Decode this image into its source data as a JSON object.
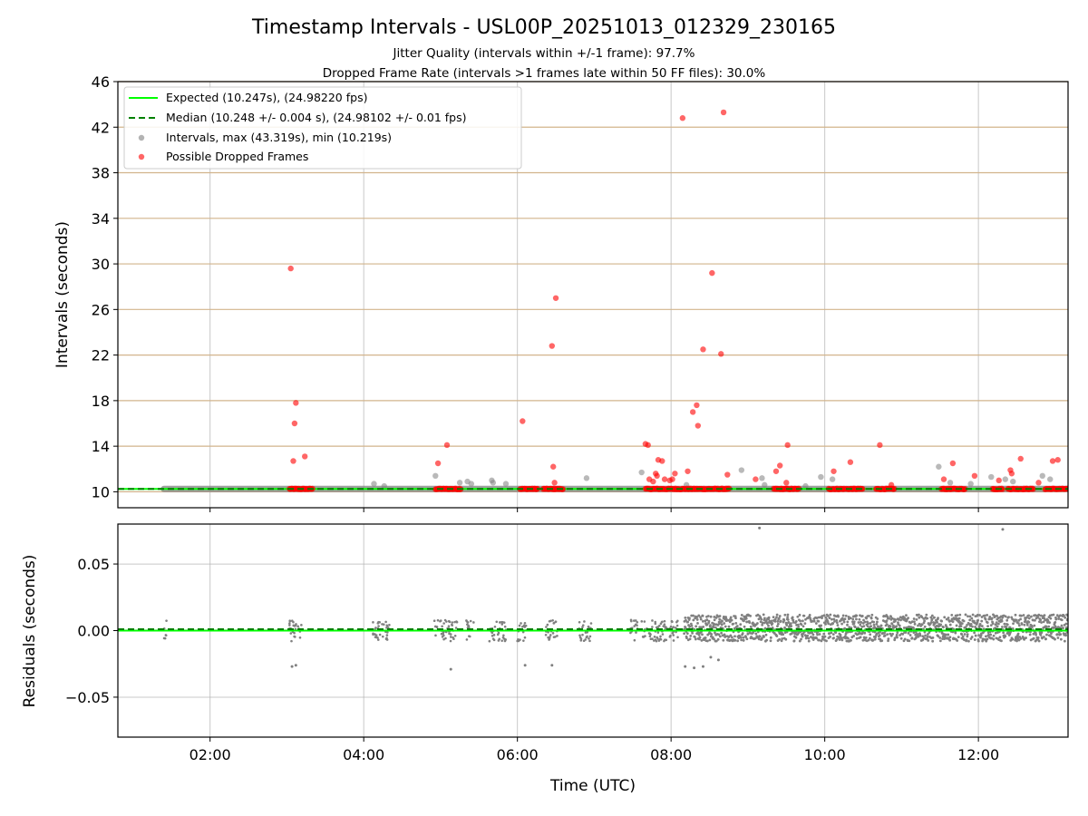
{
  "chart_data": [
    {
      "type": "scatter",
      "title": "Timestamp Intervals - USL00P_20251013_012329_230165",
      "subtitle_lines": [
        "Jitter Quality (intervals within +/-1 frame): 97.7%",
        "Dropped Frame Rate (intervals >1 frames late within 50 FF files): 30.0%"
      ],
      "xlabel": "",
      "ylabel": "Intervals (seconds)",
      "xlim": [
        "00:48",
        "13:10"
      ],
      "ylim": [
        8.6,
        46
      ],
      "yticks": [
        10,
        14,
        18,
        22,
        26,
        30,
        34,
        38,
        42,
        46
      ],
      "ytick_labels": [
        "10",
        "14",
        "18",
        "22",
        "26",
        "30",
        "34",
        "38",
        "42",
        "46"
      ],
      "xticks": [
        "02:00",
        "04:00",
        "06:00",
        "08:00",
        "10:00",
        "12:00"
      ],
      "grid": "vertical gridlines at x ticks; tan horizontal lines at y ticks",
      "legend_position": "upper-left",
      "legend": [
        "Expected (10.247s), (24.98220 fps)",
        "Median (10.248 +/- 0.004 s), (24.98102 +/- 0.01 fps)",
        "Intervals, max (43.319s), min (10.219s)",
        "Possible Dropped Frames"
      ],
      "expected_interval": 10.247,
      "median_interval": 10.248,
      "series": [
        {
          "name": "Possible Dropped Frames",
          "color": "#ff0000",
          "points": [
            {
              "x": "03:03",
              "y": 29.6
            },
            {
              "x": "03:05",
              "y": 12.7
            },
            {
              "x": "03:06",
              "y": 16.0
            },
            {
              "x": "03:07",
              "y": 17.8
            },
            {
              "x": "03:14",
              "y": 13.1
            },
            {
              "x": "04:58",
              "y": 12.5
            },
            {
              "x": "05:05",
              "y": 14.1
            },
            {
              "x": "06:04",
              "y": 16.2
            },
            {
              "x": "06:27",
              "y": 22.8
            },
            {
              "x": "06:28",
              "y": 12.2
            },
            {
              "x": "06:29",
              "y": 10.8
            },
            {
              "x": "06:30",
              "y": 27.0
            },
            {
              "x": "07:40",
              "y": 14.2
            },
            {
              "x": "07:42",
              "y": 14.1
            },
            {
              "x": "07:43",
              "y": 11.1
            },
            {
              "x": "07:46",
              "y": 10.9
            },
            {
              "x": "07:48",
              "y": 11.6
            },
            {
              "x": "07:49",
              "y": 11.4
            },
            {
              "x": "07:50",
              "y": 12.8
            },
            {
              "x": "07:53",
              "y": 12.7
            },
            {
              "x": "07:55",
              "y": 11.1
            },
            {
              "x": "07:59",
              "y": 11.0
            },
            {
              "x": "08:01",
              "y": 11.1
            },
            {
              "x": "08:03",
              "y": 11.6
            },
            {
              "x": "08:09",
              "y": 42.8
            },
            {
              "x": "08:13",
              "y": 11.8
            },
            {
              "x": "08:17",
              "y": 17.0
            },
            {
              "x": "08:20",
              "y": 17.6
            },
            {
              "x": "08:21",
              "y": 15.8
            },
            {
              "x": "08:25",
              "y": 22.5
            },
            {
              "x": "08:32",
              "y": 29.2
            },
            {
              "x": "08:39",
              "y": 22.1
            },
            {
              "x": "08:41",
              "y": 43.3
            },
            {
              "x": "08:44",
              "y": 11.5
            },
            {
              "x": "09:06",
              "y": 11.1
            },
            {
              "x": "09:22",
              "y": 11.8
            },
            {
              "x": "09:25",
              "y": 12.3
            },
            {
              "x": "09:30",
              "y": 10.8
            },
            {
              "x": "09:31",
              "y": 14.1
            },
            {
              "x": "10:07",
              "y": 11.8
            },
            {
              "x": "10:20",
              "y": 12.6
            },
            {
              "x": "10:43",
              "y": 14.1
            },
            {
              "x": "10:52",
              "y": 10.6
            },
            {
              "x": "11:33",
              "y": 11.1
            },
            {
              "x": "11:40",
              "y": 12.5
            },
            {
              "x": "11:57",
              "y": 11.4
            },
            {
              "x": "12:16",
              "y": 11.0
            },
            {
              "x": "12:25",
              "y": 11.9
            },
            {
              "x": "12:26",
              "y": 11.6
            },
            {
              "x": "12:33",
              "y": 12.9
            },
            {
              "x": "12:47",
              "y": 10.8
            },
            {
              "x": "12:58",
              "y": 12.7
            },
            {
              "x": "13:02",
              "y": 12.8
            }
          ],
          "clusters_near_10_25": [
            [
              "03:02",
              "03:20"
            ],
            [
              "04:56",
              "05:16"
            ],
            [
              "06:02",
              "06:16"
            ],
            [
              "06:20",
              "06:36"
            ],
            [
              "07:40",
              "08:46"
            ],
            [
              "09:20",
              "09:40"
            ],
            [
              "10:03",
              "10:16"
            ],
            [
              "10:17",
              "10:30"
            ],
            [
              "10:40",
              "10:55"
            ],
            [
              "11:31",
              "11:50"
            ],
            [
              "12:11",
              "12:19"
            ],
            [
              "12:23",
              "12:43"
            ],
            [
              "12:52",
              "13:10"
            ]
          ]
        },
        {
          "name": "Intervals, max (43.319s), min (10.219s)",
          "color": "#808080",
          "points": [
            {
              "x": "04:08",
              "y": 10.7
            },
            {
              "x": "04:16",
              "y": 10.5
            },
            {
              "x": "04:56",
              "y": 11.4
            },
            {
              "x": "05:15",
              "y": 10.8
            },
            {
              "x": "05:21",
              "y": 10.9
            },
            {
              "x": "05:24",
              "y": 10.7
            },
            {
              "x": "05:40",
              "y": 11.0
            },
            {
              "x": "05:41",
              "y": 10.8
            },
            {
              "x": "05:51",
              "y": 10.7
            },
            {
              "x": "06:54",
              "y": 11.2
            },
            {
              "x": "07:37",
              "y": 11.7
            },
            {
              "x": "08:12",
              "y": 10.6
            },
            {
              "x": "08:55",
              "y": 11.9
            },
            {
              "x": "09:11",
              "y": 11.2
            },
            {
              "x": "09:13",
              "y": 10.6
            },
            {
              "x": "09:45",
              "y": 10.5
            },
            {
              "x": "09:57",
              "y": 11.3
            },
            {
              "x": "10:06",
              "y": 11.1
            },
            {
              "x": "11:29",
              "y": 12.2
            },
            {
              "x": "11:38",
              "y": 10.8
            },
            {
              "x": "11:54",
              "y": 10.7
            },
            {
              "x": "12:10",
              "y": 11.3
            },
            {
              "x": "12:21",
              "y": 11.1
            },
            {
              "x": "12:27",
              "y": 10.9
            },
            {
              "x": "12:50",
              "y": 11.4
            },
            {
              "x": "12:56",
              "y": 11.1
            }
          ],
          "baseline": {
            "from": "01:24",
            "to": "13:10",
            "y": 10.25
          }
        }
      ]
    },
    {
      "type": "scatter",
      "xlabel": "Time (UTC)",
      "ylabel": "Residuals (seconds)",
      "xlim": [
        "00:48",
        "13:10"
      ],
      "ylim": [
        -0.08,
        0.08
      ],
      "yticks": [
        0.05,
        0.0,
        -0.05
      ],
      "ytick_labels": [
        "0.05",
        "0.00",
        "−0.05"
      ],
      "xticks": [
        "02:00",
        "04:00",
        "06:00",
        "08:00",
        "10:00",
        "12:00"
      ],
      "xtick_labels": [
        "02:00",
        "04:00",
        "06:00",
        "08:00",
        "10:00",
        "12:00"
      ],
      "grid": "on",
      "series": [
        {
          "name": "Residuals",
          "color": "#808080",
          "sparse_bursts": [
            [
              "01:24",
              "01:26"
            ],
            [
              "03:02",
              "03:12"
            ],
            [
              "04:07",
              "04:20"
            ],
            [
              "04:55",
              "05:13"
            ],
            [
              "05:20",
              "05:26"
            ],
            [
              "05:38",
              "05:52"
            ],
            [
              "06:00",
              "06:08"
            ],
            [
              "06:22",
              "06:32"
            ],
            [
              "06:48",
              "06:58"
            ],
            [
              "07:27",
              "07:34"
            ],
            [
              "07:37",
              "08:06"
            ]
          ],
          "dense_band": {
            "from": "08:10",
            "to": "13:10",
            "min": -0.008,
            "max": 0.012
          },
          "outliers": [
            {
              "x": "03:04",
              "y": -0.027
            },
            {
              "x": "03:07",
              "y": -0.026
            },
            {
              "x": "05:08",
              "y": -0.029
            },
            {
              "x": "06:06",
              "y": -0.026
            },
            {
              "x": "06:27",
              "y": -0.026
            },
            {
              "x": "08:11",
              "y": -0.027
            },
            {
              "x": "08:18",
              "y": -0.028
            },
            {
              "x": "08:25",
              "y": -0.027
            },
            {
              "x": "08:31",
              "y": -0.02
            },
            {
              "x": "08:37",
              "y": -0.022
            },
            {
              "x": "09:09",
              "y": 0.077
            },
            {
              "x": "12:19",
              "y": 0.076
            }
          ]
        }
      ]
    }
  ],
  "colors": {
    "expected": "#00ff00",
    "median": "#008000",
    "intervals": "#808080",
    "dropped": "#ff0000",
    "hgrid": "#d2b48c",
    "grid": "#b0b0b0"
  }
}
